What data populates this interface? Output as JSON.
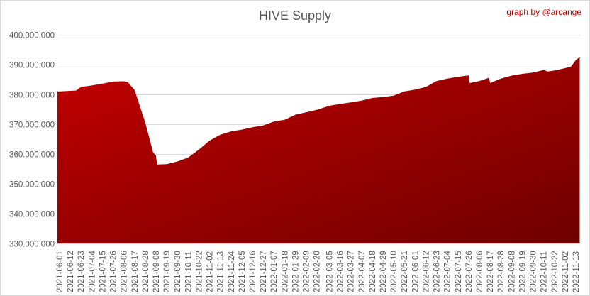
{
  "chart_data": {
    "type": "area",
    "title": "HIVE Supply",
    "annotation": "graph by @arcange",
    "xlabel": "",
    "ylabel": "",
    "ylim": [
      330000000,
      400000000
    ],
    "yticks": [
      330000000,
      340000000,
      350000000,
      360000000,
      370000000,
      380000000,
      390000000,
      400000000
    ],
    "ytick_labels": [
      "330.000.000",
      "340.000.000",
      "350.000.000",
      "360.000.000",
      "370.000.000",
      "380.000.000",
      "390.000.000",
      "400.000.000"
    ],
    "xtick_labels": [
      "2021-06-01",
      "2021-06-12",
      "2021-06-23",
      "2021-07-04",
      "2021-07-15",
      "2021-07-26",
      "2021-08-06",
      "2021-08-17",
      "2021-08-28",
      "2021-09-08",
      "2021-09-19",
      "2021-09-30",
      "2021-10-11",
      "2021-10-22",
      "2021-11-02",
      "2021-11-13",
      "2021-11-24",
      "2021-12-05",
      "2021-12-16",
      "2021-12-27",
      "2022-01-07",
      "2022-01-18",
      "2022-01-29",
      "2022-02-09",
      "2022-02-20",
      "2022-03-05",
      "2022-03-16",
      "2022-03-27",
      "2022-04-07",
      "2022-04-18",
      "2022-04-29",
      "2022-05-10",
      "2022-05-21",
      "2022-06-01",
      "2022-06-12",
      "2022-06-23",
      "2022-07-04",
      "2022-07-15",
      "2022-07-26",
      "2022-08-06",
      "2022-08-17",
      "2022-08-28",
      "2022-09-08",
      "2022-09-19",
      "2022-09-30",
      "2022-10-11",
      "2022-10-22",
      "2022-11-02",
      "2022-11-13"
    ],
    "grid": true,
    "legend": "none",
    "colors": {
      "fill_light": "#c00000",
      "fill_dark": "#6e0000",
      "credit": "#c00000",
      "grid": "#d9d9d9"
    },
    "series": [
      {
        "points": [
          [
            "2021-06-01",
            381.0
          ],
          [
            "2021-06-12",
            381.2
          ],
          [
            "2021-06-18",
            381.3
          ],
          [
            "2021-06-23",
            382.5
          ],
          [
            "2021-07-04",
            383.0
          ],
          [
            "2021-07-15",
            383.6
          ],
          [
            "2021-07-26",
            384.3
          ],
          [
            "2021-08-06",
            384.4
          ],
          [
            "2021-08-10",
            384.1
          ],
          [
            "2021-08-17",
            381.5
          ],
          [
            "2021-08-28",
            370.5
          ],
          [
            "2021-09-05",
            360.5
          ],
          [
            "2021-09-08",
            359.5
          ],
          [
            "2021-09-09",
            356.5
          ],
          [
            "2021-09-19",
            356.6
          ],
          [
            "2021-09-30",
            357.5
          ],
          [
            "2021-10-11",
            358.8
          ],
          [
            "2021-10-22",
            361.5
          ],
          [
            "2021-11-02",
            364.5
          ],
          [
            "2021-11-13",
            366.5
          ],
          [
            "2021-11-24",
            367.6
          ],
          [
            "2021-12-05",
            368.2
          ],
          [
            "2021-12-16",
            369.0
          ],
          [
            "2021-12-27",
            369.6
          ],
          [
            "2022-01-07",
            370.9
          ],
          [
            "2022-01-18",
            371.5
          ],
          [
            "2022-01-29",
            373.2
          ],
          [
            "2022-02-09",
            374.0
          ],
          [
            "2022-02-20",
            374.8
          ],
          [
            "2022-03-05",
            376.2
          ],
          [
            "2022-03-16",
            376.8
          ],
          [
            "2022-03-27",
            377.3
          ],
          [
            "2022-04-07",
            377.9
          ],
          [
            "2022-04-18",
            378.8
          ],
          [
            "2022-04-29",
            379.1
          ],
          [
            "2022-05-10",
            379.6
          ],
          [
            "2022-05-21",
            381.0
          ],
          [
            "2022-06-01",
            381.6
          ],
          [
            "2022-06-12",
            382.5
          ],
          [
            "2022-06-23",
            384.5
          ],
          [
            "2022-07-04",
            385.3
          ],
          [
            "2022-07-15",
            385.9
          ],
          [
            "2022-07-26",
            386.4
          ],
          [
            "2022-07-27",
            383.8
          ],
          [
            "2022-08-06",
            384.5
          ],
          [
            "2022-08-16",
            385.6
          ],
          [
            "2022-08-17",
            383.8
          ],
          [
            "2022-08-28",
            385.3
          ],
          [
            "2022-09-08",
            386.3
          ],
          [
            "2022-09-19",
            386.9
          ],
          [
            "2022-09-30",
            387.3
          ],
          [
            "2022-10-11",
            388.2
          ],
          [
            "2022-10-15",
            387.7
          ],
          [
            "2022-10-22",
            388.0
          ],
          [
            "2022-11-02",
            388.8
          ],
          [
            "2022-11-08",
            389.3
          ],
          [
            "2022-11-13",
            391.5
          ],
          [
            "2022-11-17",
            392.6
          ]
        ]
      }
    ]
  }
}
